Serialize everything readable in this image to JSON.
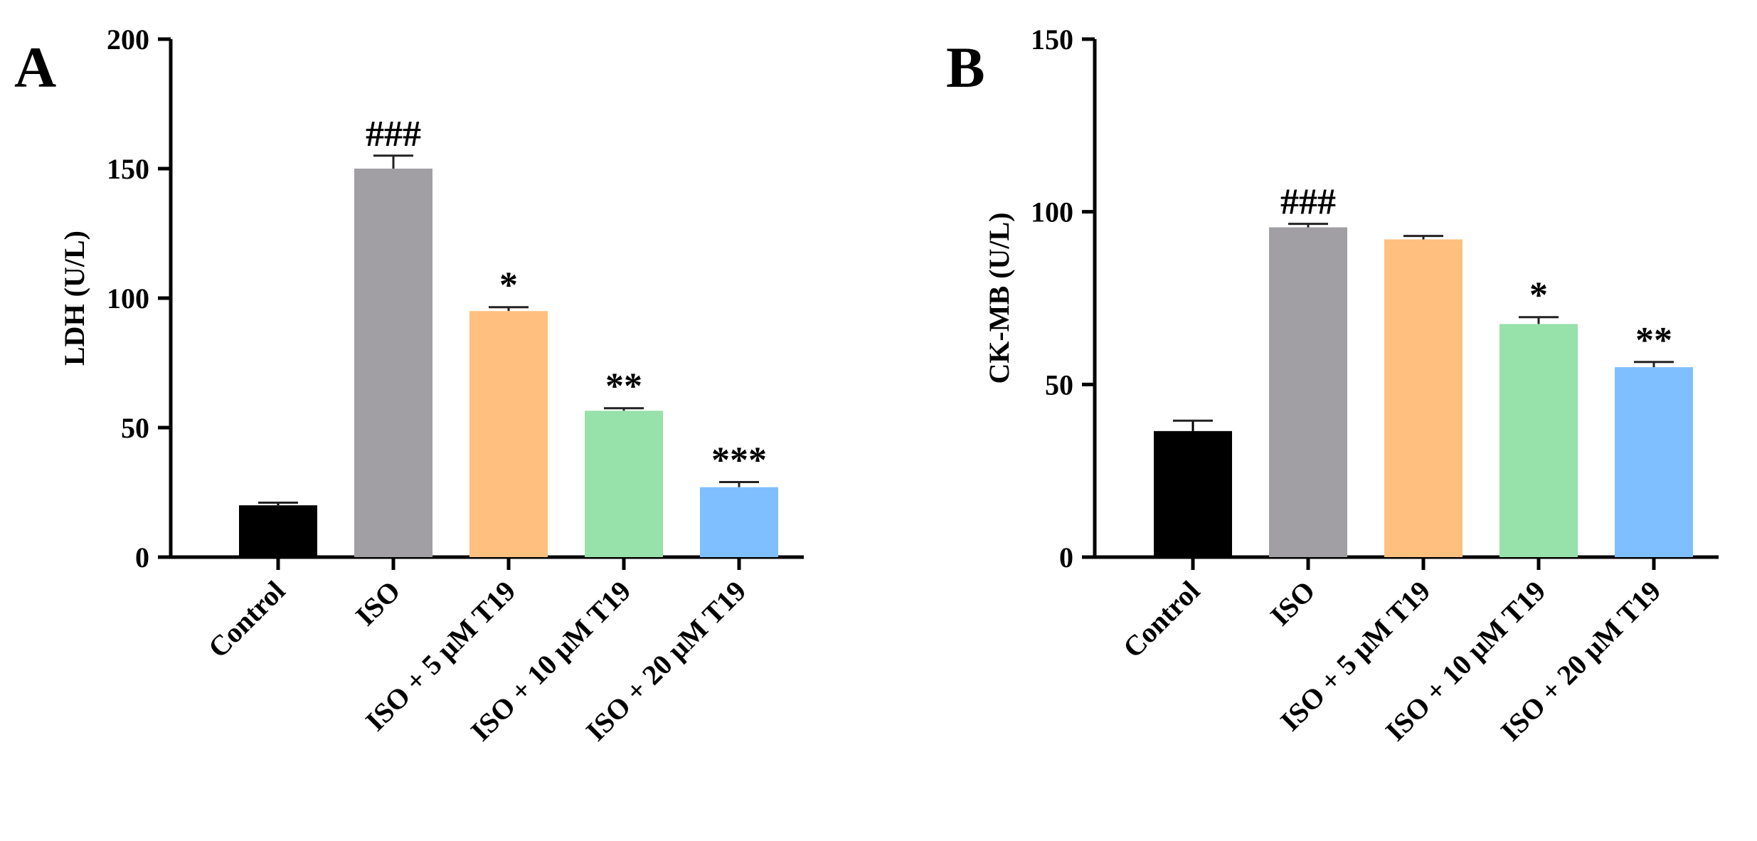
{
  "chart_data": [
    {
      "type": "bar",
      "panel": "A",
      "ylabel": "LDH (U/L)",
      "categories": [
        "Control",
        "ISO",
        "ISO + 5 μM T19",
        "ISO + 10 μM T19",
        "ISO + 20 μM T19"
      ],
      "values": [
        20,
        150,
        95,
        56.5,
        27
      ],
      "errors": [
        1,
        5,
        1.5,
        1,
        2
      ],
      "annotations": [
        null,
        "###",
        "*",
        "**",
        "***"
      ],
      "colors": [
        "#000000",
        "#a19fa4",
        "#ffbf7f",
        "#97e1aa",
        "#7fbfff"
      ],
      "ylim": [
        0,
        200
      ],
      "yticks": [
        0,
        50,
        100,
        150,
        200
      ]
    },
    {
      "type": "bar",
      "panel": "B",
      "ylabel": "CK-MB (U/L)",
      "categories": [
        "Control",
        "ISO",
        "ISO + 5 μM T19",
        "ISO + 10 μM T19",
        "ISO + 20 μM T19"
      ],
      "values": [
        36.5,
        95.5,
        92,
        67.5,
        55
      ],
      "errors": [
        3,
        1,
        1,
        2,
        1.5
      ],
      "annotations": [
        null,
        "###",
        null,
        "*",
        "**"
      ],
      "colors": [
        "#000000",
        "#a19fa4",
        "#ffbf7f",
        "#97e1aa",
        "#7fbfff"
      ],
      "ylim": [
        0,
        150
      ],
      "yticks": [
        0,
        50,
        100,
        150
      ]
    }
  ]
}
